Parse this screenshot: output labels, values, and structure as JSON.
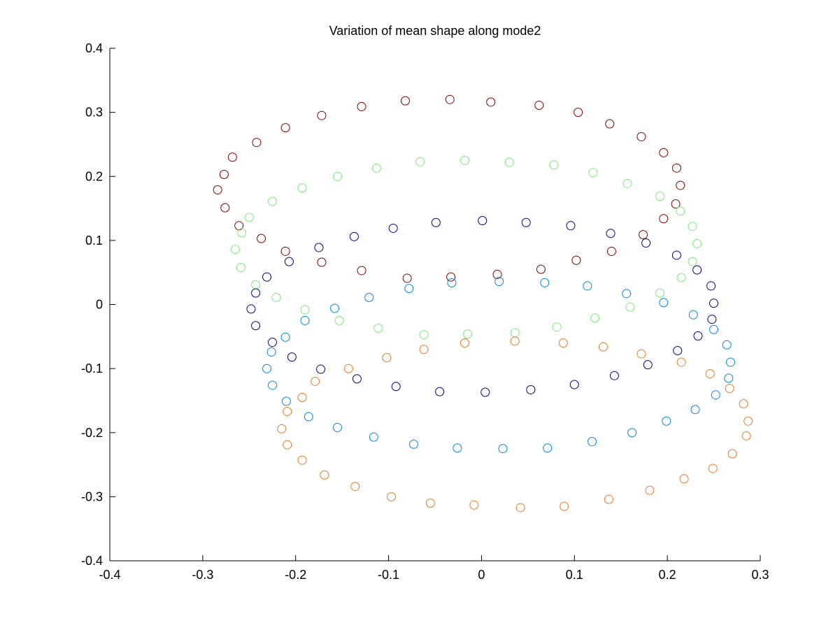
{
  "chart_data": {
    "type": "scatter",
    "title": "Variation of mean shape along mode2",
    "xlabel": "",
    "ylabel": "",
    "xlim": [
      -0.4,
      0.3
    ],
    "ylim": [
      -0.4,
      0.4
    ],
    "xticks": [
      -0.4,
      -0.3,
      -0.2,
      -0.1,
      0,
      0.1,
      0.2,
      0.3
    ],
    "yticks": [
      -0.4,
      -0.3,
      -0.2,
      -0.1,
      0,
      0.1,
      0.2,
      0.3,
      0.4
    ],
    "xtick_labels": [
      "-0.4",
      "-0.3",
      "-0.2",
      "-0.1",
      "0",
      "0.1",
      "0.2",
      "0.3"
    ],
    "ytick_labels": [
      "-0.4",
      "-0.3",
      "-0.2",
      "-0.1",
      "0",
      "0.1",
      "0.2",
      "0.3",
      "0.4"
    ],
    "grid": false,
    "legend": "none",
    "marker": "circle-open",
    "series": [
      {
        "color": "#800000",
        "points": [
          [
            -0.284,
            0.179
          ],
          [
            -0.277,
            0.203
          ],
          [
            -0.268,
            0.23
          ],
          [
            -0.242,
            0.253
          ],
          [
            -0.211,
            0.276
          ],
          [
            -0.172,
            0.295
          ],
          [
            -0.129,
            0.309
          ],
          [
            -0.082,
            0.318
          ],
          [
            -0.034,
            0.32
          ],
          [
            0.01,
            0.316
          ],
          [
            0.062,
            0.311
          ],
          [
            0.104,
            0.3
          ],
          [
            0.138,
            0.282
          ],
          [
            0.172,
            0.262
          ],
          [
            0.196,
            0.237
          ],
          [
            0.21,
            0.213
          ],
          [
            0.214,
            0.186
          ],
          [
            0.209,
            0.157
          ],
          [
            0.196,
            0.134
          ],
          [
            0.174,
            0.109
          ],
          [
            0.14,
            0.083
          ],
          [
            0.102,
            0.069
          ],
          [
            0.064,
            0.055
          ],
          [
            0.017,
            0.047
          ],
          [
            -0.033,
            0.043
          ],
          [
            -0.08,
            0.041
          ],
          [
            -0.129,
            0.053
          ],
          [
            -0.172,
            0.066
          ],
          [
            -0.211,
            0.083
          ],
          [
            -0.237,
            0.103
          ],
          [
            -0.261,
            0.123
          ],
          [
            -0.276,
            0.151
          ]
        ]
      },
      {
        "color": "#77ee77",
        "points": [
          [
            -0.258,
            0.112
          ],
          [
            -0.25,
            0.136
          ],
          [
            -0.225,
            0.161
          ],
          [
            -0.193,
            0.182
          ],
          [
            -0.155,
            0.2
          ],
          [
            -0.113,
            0.213
          ],
          [
            -0.066,
            0.223
          ],
          [
            -0.018,
            0.225
          ],
          [
            0.03,
            0.222
          ],
          [
            0.078,
            0.218
          ],
          [
            0.12,
            0.206
          ],
          [
            0.157,
            0.189
          ],
          [
            0.192,
            0.169
          ],
          [
            0.214,
            0.146
          ],
          [
            0.227,
            0.122
          ],
          [
            0.232,
            0.095
          ],
          [
            0.227,
            0.067
          ],
          [
            0.215,
            0.042
          ],
          [
            0.192,
            0.018
          ],
          [
            0.16,
            -0.004
          ],
          [
            0.122,
            -0.021
          ],
          [
            0.081,
            -0.035
          ],
          [
            0.036,
            -0.044
          ],
          [
            -0.015,
            -0.046
          ],
          [
            -0.062,
            -0.047
          ],
          [
            -0.111,
            -0.037
          ],
          [
            -0.153,
            -0.025
          ],
          [
            -0.19,
            -0.008
          ],
          [
            -0.221,
            0.011
          ],
          [
            -0.243,
            0.031
          ],
          [
            -0.259,
            0.058
          ],
          [
            -0.265,
            0.086
          ]
        ]
      },
      {
        "color": "#000080",
        "points": [
          [
            -0.248,
            -0.007
          ],
          [
            -0.243,
            -0.033
          ],
          [
            -0.225,
            -0.059
          ],
          [
            -0.204,
            -0.082
          ],
          [
            -0.173,
            -0.101
          ],
          [
            -0.134,
            -0.116
          ],
          [
            -0.092,
            -0.128
          ],
          [
            -0.045,
            -0.136
          ],
          [
            0.004,
            -0.137
          ],
          [
            0.053,
            -0.133
          ],
          [
            0.1,
            -0.125
          ],
          [
            0.143,
            -0.111
          ],
          [
            0.179,
            -0.094
          ],
          [
            0.211,
            -0.072
          ],
          [
            0.233,
            -0.049
          ],
          [
            0.248,
            -0.023
          ],
          [
            0.25,
            0.002
          ],
          [
            0.247,
            0.029
          ],
          [
            0.232,
            0.054
          ],
          [
            0.21,
            0.077
          ],
          [
            0.177,
            0.096
          ],
          [
            0.139,
            0.111
          ],
          [
            0.096,
            0.123
          ],
          [
            0.048,
            0.128
          ],
          [
            0.001,
            0.131
          ],
          [
            -0.049,
            0.128
          ],
          [
            -0.095,
            0.119
          ],
          [
            -0.137,
            0.106
          ],
          [
            -0.175,
            0.089
          ],
          [
            -0.207,
            0.067
          ],
          [
            -0.231,
            0.043
          ],
          [
            -0.243,
            0.018
          ]
        ]
      },
      {
        "color": "#0088dd",
        "points": [
          [
            -0.231,
            -0.1
          ],
          [
            -0.225,
            -0.126
          ],
          [
            -0.21,
            -0.151
          ],
          [
            -0.186,
            -0.175
          ],
          [
            -0.155,
            -0.192
          ],
          [
            -0.116,
            -0.207
          ],
          [
            -0.073,
            -0.218
          ],
          [
            -0.026,
            -0.224
          ],
          [
            0.023,
            -0.225
          ],
          [
            0.071,
            -0.224
          ],
          [
            0.119,
            -0.214
          ],
          [
            0.162,
            -0.2
          ],
          [
            0.199,
            -0.182
          ],
          [
            0.23,
            -0.164
          ],
          [
            0.252,
            -0.141
          ],
          [
            0.266,
            -0.115
          ],
          [
            0.268,
            -0.09
          ],
          [
            0.264,
            -0.063
          ],
          [
            0.25,
            -0.039
          ],
          [
            0.228,
            -0.016
          ],
          [
            0.196,
            0.003
          ],
          [
            0.156,
            0.017
          ],
          [
            0.114,
            0.029
          ],
          [
            0.068,
            0.034
          ],
          [
            0.019,
            0.036
          ],
          [
            -0.032,
            0.034
          ],
          [
            -0.078,
            0.025
          ],
          [
            -0.121,
            0.011
          ],
          [
            -0.158,
            -0.006
          ],
          [
            -0.19,
            -0.025
          ],
          [
            -0.211,
            -0.051
          ],
          [
            -0.226,
            -0.074
          ]
        ]
      },
      {
        "color": "#ee7722",
        "points": [
          [
            -0.215,
            -0.194
          ],
          [
            -0.209,
            -0.219
          ],
          [
            -0.193,
            -0.243
          ],
          [
            -0.169,
            -0.266
          ],
          [
            -0.136,
            -0.284
          ],
          [
            -0.097,
            -0.3
          ],
          [
            -0.055,
            -0.31
          ],
          [
            -0.008,
            -0.313
          ],
          [
            0.042,
            -0.317
          ],
          [
            0.089,
            -0.315
          ],
          [
            0.137,
            -0.304
          ],
          [
            0.181,
            -0.29
          ],
          [
            0.218,
            -0.272
          ],
          [
            0.249,
            -0.256
          ],
          [
            0.27,
            -0.233
          ],
          [
            0.285,
            -0.205
          ],
          [
            0.287,
            -0.182
          ],
          [
            0.282,
            -0.155
          ],
          [
            0.267,
            -0.131
          ],
          [
            0.246,
            -0.108
          ],
          [
            0.215,
            -0.09
          ],
          [
            0.172,
            -0.077
          ],
          [
            0.131,
            -0.066
          ],
          [
            0.088,
            -0.06
          ],
          [
            0.036,
            -0.057
          ],
          [
            -0.018,
            -0.06
          ],
          [
            -0.062,
            -0.07
          ],
          [
            -0.102,
            -0.083
          ],
          [
            -0.143,
            -0.1
          ],
          [
            -0.179,
            -0.12
          ],
          [
            -0.193,
            -0.145
          ],
          [
            -0.209,
            -0.167
          ]
        ]
      }
    ]
  }
}
